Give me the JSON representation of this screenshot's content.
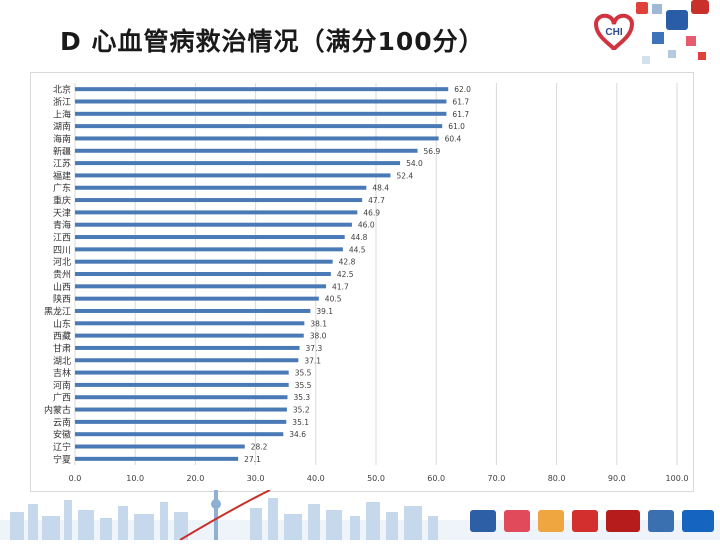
{
  "slide": {
    "title": "D  心血管病救治情况（满分100分）"
  },
  "logo": {
    "text": "CHI"
  },
  "colors": {
    "bar": "#4a7ab5",
    "grid": "#d9d9d9",
    "text": "#404040"
  },
  "chart_data": {
    "type": "bar",
    "orientation": "horizontal",
    "categories": [
      "北京",
      "浙江",
      "上海",
      "湖南",
      "海南",
      "新疆",
      "江苏",
      "福建",
      "广东",
      "重庆",
      "天津",
      "青海",
      "江西",
      "四川",
      "河北",
      "贵州",
      "山西",
      "陕西",
      "黑龙江",
      "山东",
      "西藏",
      "甘肃",
      "湖北",
      "吉林",
      "河南",
      "广西",
      "内蒙古",
      "云南",
      "安徽",
      "辽宁",
      "宁夏"
    ],
    "values": [
      62.0,
      61.7,
      61.7,
      61.0,
      60.4,
      56.9,
      54.0,
      52.4,
      48.4,
      47.7,
      46.9,
      46.0,
      44.8,
      44.5,
      42.8,
      42.5,
      41.7,
      40.5,
      39.1,
      38.1,
      38.0,
      37.3,
      37.1,
      35.5,
      35.5,
      35.3,
      35.2,
      35.1,
      34.6,
      28.2,
      27.1
    ],
    "value_labels": [
      "62.0",
      "61.7",
      "61.7",
      "61.0",
      "60.4",
      "56.9",
      "54.0",
      "52.4",
      "48.4",
      "47.7",
      "46.9",
      "46.0",
      "44.8",
      "44.5",
      "42.8",
      "42.5",
      "41.7",
      "40.5",
      "39.1",
      "38.1",
      "38.0",
      "37.3",
      "37.1",
      "35.5",
      "35.5",
      "35.3",
      "35.2",
      "35.1",
      "34.6",
      "28.2",
      "27.1"
    ],
    "xlim": [
      0,
      100
    ],
    "xticks": [
      0,
      10,
      20,
      30,
      40,
      50,
      60,
      70,
      80,
      90,
      100
    ],
    "xtick_labels": [
      "0.0",
      "10.0",
      "20.0",
      "30.0",
      "40.0",
      "50.0",
      "60.0",
      "70.0",
      "80.0",
      "90.0",
      "100.0"
    ],
    "grid": "vertical",
    "title": "",
    "xlabel": "",
    "ylabel": ""
  }
}
